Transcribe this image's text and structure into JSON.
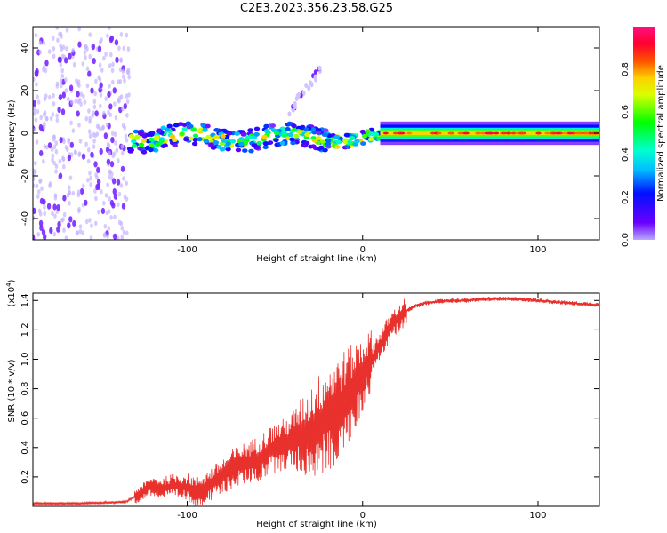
{
  "figure": {
    "title": "C2E3.2023.356.23.58.G25"
  },
  "chart_data": [
    {
      "type": "heatmap",
      "name": "spectrogram",
      "xlabel": "Height of straight line (km)",
      "ylabel": "Frequency (Hz)",
      "xlim": [
        -188,
        135
      ],
      "ylim": [
        -50,
        50
      ],
      "xticks": [
        -100,
        0,
        100
      ],
      "yticks": [
        -40,
        -20,
        0,
        20,
        40
      ],
      "colorbar": {
        "label": "Normalized spectral amplitude",
        "range": [
          0,
          1
        ],
        "ticks": [
          0.0,
          0.2,
          0.4,
          0.6,
          0.8
        ],
        "colormap": "rainbow (violet-blue-cyan-green-yellow-red-magenta)"
      },
      "features": [
        {
          "description": "noise",
          "x_range": [
            -188,
            -133
          ],
          "y_range": [
            -50,
            50
          ],
          "amplitude": 0.05
        },
        {
          "description": "signal band",
          "x_range": [
            -133,
            10
          ],
          "center_freq_hz": -2,
          "spread_hz": 10,
          "amplitude": 0.3
        },
        {
          "description": "signal band",
          "x_range": [
            10,
            135
          ],
          "center_freq_hz": 0,
          "spread_hz": 4,
          "amplitude": 0.75
        },
        {
          "description": "streak",
          "x_range": [
            -42,
            -24
          ],
          "y_range": [
            10,
            30
          ],
          "amplitude": 0.1
        }
      ]
    },
    {
      "type": "line",
      "name": "snr",
      "xlabel": "Height of straight line (km)",
      "ylabel": "SNR (10 * v/v)",
      "y_multiplier": "(x10",
      "y_multiplier_exp": "4",
      "y_multiplier_close": ")",
      "xlim": [
        -188,
        135
      ],
      "ylim": [
        0,
        1.45
      ],
      "xticks": [
        -100,
        0,
        100
      ],
      "yticks": [
        0.2,
        0.4,
        0.6,
        0.8,
        1.0,
        1.2,
        1.4
      ],
      "color": "#e8302c",
      "series": [
        {
          "x": [
            -188,
            -160,
            -135,
            -128,
            -120,
            -115,
            -108,
            -100,
            -95,
            -90,
            -85,
            -80,
            -75,
            -70,
            -65,
            -60,
            -55,
            -50,
            -45,
            -40,
            -35,
            -30,
            -25,
            -20,
            -15,
            -10,
            -5,
            0,
            5,
            10,
            15,
            20,
            25,
            30,
            35,
            40,
            50,
            60,
            70,
            80,
            90,
            100,
            110,
            120,
            135
          ],
          "y": [
            0.02,
            0.02,
            0.03,
            0.08,
            0.14,
            0.12,
            0.14,
            0.13,
            0.1,
            0.12,
            0.16,
            0.2,
            0.25,
            0.28,
            0.3,
            0.32,
            0.36,
            0.4,
            0.42,
            0.45,
            0.48,
            0.5,
            0.55,
            0.6,
            0.65,
            0.72,
            0.8,
            0.9,
            1.0,
            1.1,
            1.2,
            1.28,
            1.33,
            1.36,
            1.38,
            1.39,
            1.4,
            1.4,
            1.41,
            1.41,
            1.41,
            1.4,
            1.39,
            1.38,
            1.37
          ]
        }
      ]
    }
  ]
}
